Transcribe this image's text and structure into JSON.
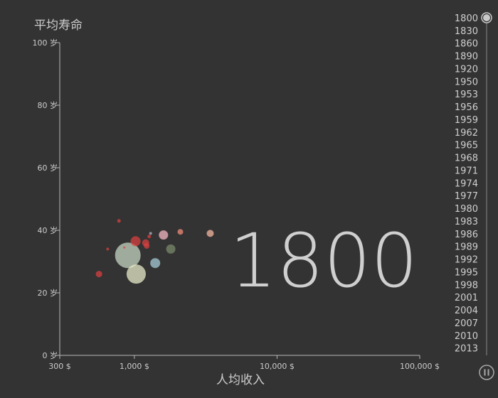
{
  "chart_data": {
    "type": "scatter",
    "title": "",
    "xlabel": "人均收入",
    "ylabel": "平均寿命",
    "xscale": "log",
    "xlim": [
      300,
      100000
    ],
    "ylim": [
      0,
      100
    ],
    "x_ticks": [
      300,
      1000,
      10000,
      100000
    ],
    "x_tick_labels": [
      "300 $",
      "1,000 $",
      "10,000 $",
      "100,000 $"
    ],
    "y_ticks": [
      0,
      20,
      40,
      60,
      80,
      100
    ],
    "y_tick_labels": [
      "0 岁",
      "20 岁",
      "40 岁",
      "60 岁",
      "80 岁",
      "100 岁"
    ],
    "current_year": "1800",
    "grid": false,
    "points": [
      {
        "x": 565,
        "y": 26,
        "r": 4.5,
        "color": "#d84040"
      },
      {
        "x": 650,
        "y": 34,
        "r": 2,
        "color": "#d84040"
      },
      {
        "x": 780,
        "y": 43,
        "r": 2.5,
        "color": "#d84040"
      },
      {
        "x": 900,
        "y": 32,
        "r": 18,
        "color": "#c4d4c0"
      },
      {
        "x": 1030,
        "y": 26,
        "r": 13.5,
        "color": "#e7ebc8"
      },
      {
        "x": 1020,
        "y": 36.5,
        "r": 7,
        "color": "#d84040"
      },
      {
        "x": 1200,
        "y": 36,
        "r": 5,
        "color": "#d84040"
      },
      {
        "x": 1220,
        "y": 35,
        "r": 4,
        "color": "#d84040"
      },
      {
        "x": 1270,
        "y": 38,
        "r": 2.5,
        "color": "#d84040"
      },
      {
        "x": 1300,
        "y": 39,
        "r": 2,
        "color": "#b3b3c9"
      },
      {
        "x": 1400,
        "y": 29.5,
        "r": 7,
        "color": "#a8cbd8"
      },
      {
        "x": 1600,
        "y": 38.5,
        "r": 6.5,
        "color": "#f4b7c3"
      },
      {
        "x": 1800,
        "y": 34,
        "r": 6.5,
        "color": "#7a8a6a"
      },
      {
        "x": 2100,
        "y": 39.5,
        "r": 4,
        "color": "#f08a78"
      },
      {
        "x": 3400,
        "y": 39,
        "r": 5,
        "color": "#f4b7a0"
      },
      {
        "x": 850,
        "y": 34.5,
        "r": 1.5,
        "color": "#d84040"
      }
    ]
  },
  "timeline": {
    "years": [
      "1800",
      "1830",
      "1860",
      "1890",
      "1920",
      "1950",
      "1953",
      "1956",
      "1959",
      "1962",
      "1965",
      "1968",
      "1971",
      "1974",
      "1977",
      "1980",
      "1983",
      "1986",
      "1989",
      "1992",
      "1995",
      "1998",
      "2001",
      "2004",
      "2007",
      "2010",
      "2013"
    ],
    "selected_index": 0,
    "handle_color": "#c8c8c8",
    "play_state": "pause"
  }
}
